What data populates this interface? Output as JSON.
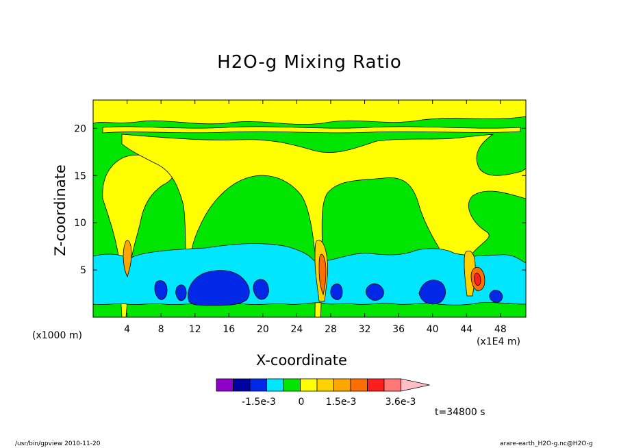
{
  "chart_data": {
    "type": "heatmap",
    "title": "H2O-g Mixing Ratio",
    "xlabel": "X-coordinate",
    "ylabel": "Z-coordinate",
    "x_unit_left": "(x1000 m)",
    "x_unit_right": "(x1E4 m)",
    "xlim": [
      0,
      51
    ],
    "ylim": [
      0,
      23
    ],
    "xticks": [
      4,
      8,
      12,
      16,
      20,
      24,
      28,
      32,
      36,
      40,
      44,
      48
    ],
    "yticks": [
      5,
      10,
      15,
      20
    ],
    "colorbar": {
      "colors": [
        "#8f00c8",
        "#0000a0",
        "#0028e6",
        "#00e6ff",
        "#00e600",
        "#ffff00",
        "#ffd200",
        "#ffa500",
        "#ff6e00",
        "#ff1e1e",
        "#ff7878",
        "#ffbec8"
      ],
      "labels": [
        "-1.5e-3",
        "0",
        "1.5e-3",
        "3.6e-3"
      ]
    },
    "time_label": "t=34800 s"
  },
  "footer": {
    "left": "/usr/bin/gpview   2010-11-20",
    "right": "arare-earth_H2O-g.nc@H2O-g"
  }
}
